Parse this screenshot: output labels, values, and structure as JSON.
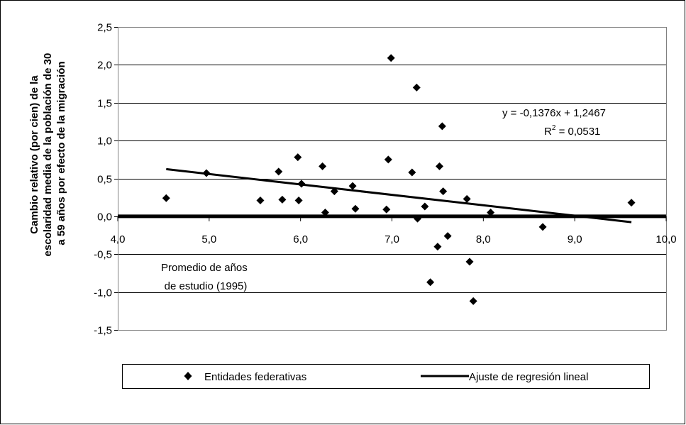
{
  "chart_data": {
    "type": "scatter",
    "ylabel_lines": [
      "Cambio relativo (por cien) de la",
      "escolaridad media de la población de 30",
      "a 59 años por efecto de la migración"
    ],
    "xlim": [
      4.0,
      10.0
    ],
    "ylim": [
      -1.5,
      2.5
    ],
    "x_ticks": [
      "4,0",
      "5,0",
      "6,0",
      "7,0",
      "8,0",
      "9,0",
      "10,0"
    ],
    "y_ticks": [
      "2,5",
      "2,0",
      "1,5",
      "1,0",
      "0,5",
      "0,0",
      "-0,5",
      "-1,0",
      "-1,5"
    ],
    "grid": "horizontal",
    "annotation_lines": [
      "Promedio de años",
      "de estudio (1995)"
    ],
    "equation": {
      "line1": "y = -0,1376x + 1,2467",
      "r2_prefix": "R",
      "r2_sup": "2",
      "r2_value": " = 0,0531"
    },
    "legend": {
      "placement": "bottom",
      "points_label": "Entidades federativas",
      "line_label": "Ajuste de regresión lineal"
    },
    "series": [
      {
        "name": "Entidades federativas",
        "type": "scatter",
        "marker": "diamond",
        "points": [
          [
            4.53,
            0.24
          ],
          [
            4.97,
            0.57
          ],
          [
            5.56,
            0.21
          ],
          [
            5.76,
            0.59
          ],
          [
            5.8,
            0.22
          ],
          [
            5.97,
            0.78
          ],
          [
            5.98,
            0.21
          ],
          [
            6.01,
            0.43
          ],
          [
            6.24,
            0.66
          ],
          [
            6.27,
            0.05
          ],
          [
            6.37,
            0.33
          ],
          [
            6.57,
            0.4
          ],
          [
            6.6,
            0.1
          ],
          [
            6.94,
            0.09
          ],
          [
            6.96,
            0.75
          ],
          [
            6.99,
            2.09
          ],
          [
            7.22,
            0.58
          ],
          [
            7.27,
            1.7
          ],
          [
            7.28,
            -0.03
          ],
          [
            7.36,
            0.13
          ],
          [
            7.42,
            -0.87
          ],
          [
            7.5,
            -0.4
          ],
          [
            7.52,
            0.66
          ],
          [
            7.55,
            1.19
          ],
          [
            7.56,
            0.33
          ],
          [
            7.61,
            -0.26
          ],
          [
            7.82,
            0.23
          ],
          [
            7.85,
            -0.6
          ],
          [
            7.89,
            -1.12
          ],
          [
            8.08,
            0.05
          ],
          [
            8.65,
            -0.14
          ],
          [
            9.62,
            0.18
          ]
        ]
      },
      {
        "name": "Ajuste de regresión lineal",
        "type": "line",
        "points": [
          [
            4.53,
            0.623
          ],
          [
            9.62,
            -0.077
          ]
        ]
      }
    ],
    "zero_line": 0.0
  }
}
